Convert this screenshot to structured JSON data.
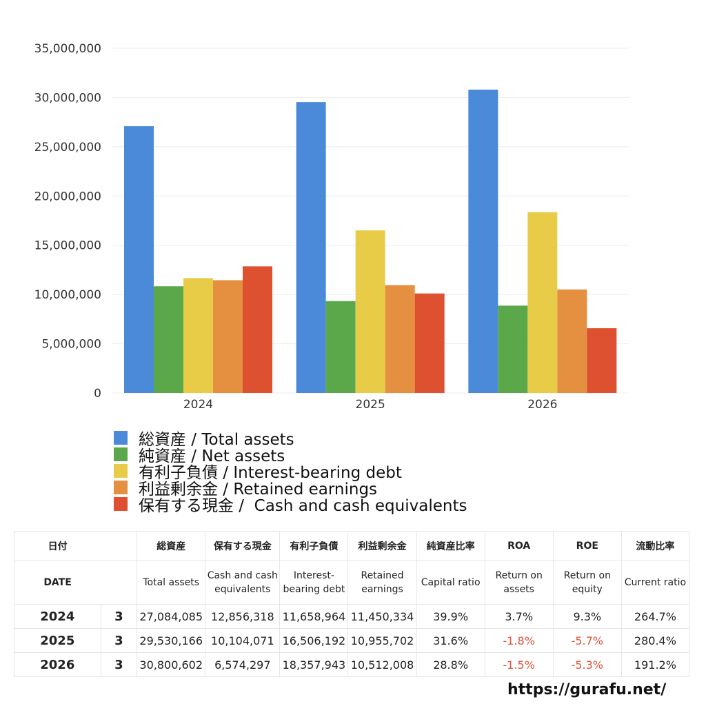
{
  "chart_data": {
    "type": "bar",
    "categories": [
      "2024",
      "2025",
      "2026"
    ],
    "ylim": [
      0,
      35000000
    ],
    "yticks": [
      "0",
      "5,000,000",
      "10,000,000",
      "15,000,000",
      "20,000,000",
      "25,000,000",
      "30,000,000",
      "35,000,000"
    ],
    "ytick_values": [
      0,
      5000000,
      10000000,
      15000000,
      20000000,
      25000000,
      30000000,
      35000000
    ],
    "grid": true,
    "legend_position": "bottom",
    "series": [
      {
        "name": "総資産 / Total assets",
        "color": "#4a8ad8",
        "values": [
          27084085,
          29530166,
          30800602
        ]
      },
      {
        "name": "純資産 / Net assets",
        "color": "#5aa84a",
        "values": [
          10834000,
          9332000,
          8870000
        ]
      },
      {
        "name": "有利子負債 / Interest-bearing debt",
        "color": "#e8cc48",
        "values": [
          11658964,
          16506192,
          18357943
        ]
      },
      {
        "name": "利益剰余金 / Retained earnings",
        "color": "#e59040",
        "values": [
          11450334,
          10955702,
          10512008
        ]
      },
      {
        "name": "保有する現金 /  Cash and cash equivalents",
        "color": "#dd5030",
        "values": [
          12856318,
          10104071,
          6574297
        ]
      }
    ]
  },
  "table": {
    "headers_ja": [
      "日付",
      "",
      "総資産",
      "保有する現金",
      "有利子負債",
      "利益剰余金",
      "純資産比率",
      "ROA",
      "ROE",
      "流動比率"
    ],
    "headers_en": [
      "DATE",
      "",
      "Total assets",
      "Cash and cash equivalents",
      "Interest-bearing debt",
      "Retained earnings",
      "Capital ratio",
      "Return on assets",
      "Return on equity",
      "Current ratio"
    ],
    "rows": [
      [
        "2024",
        "3",
        "27,084,085",
        "12,856,318",
        "11,658,964",
        "11,450,334",
        "39.9%",
        "3.7%",
        "9.3%",
        "264.7%"
      ],
      [
        "2025",
        "3",
        "29,530,166",
        "10,104,071",
        "16,506,192",
        "10,955,702",
        "31.6%",
        "-1.8%",
        "-5.7%",
        "280.4%"
      ],
      [
        "2026",
        "3",
        "30,800,602",
        "6,574,297",
        "18,357,943",
        "10,512,008",
        "28.8%",
        "-1.5%",
        "-5.3%",
        "191.2%"
      ]
    ]
  },
  "site": "https://gurafu.net/"
}
